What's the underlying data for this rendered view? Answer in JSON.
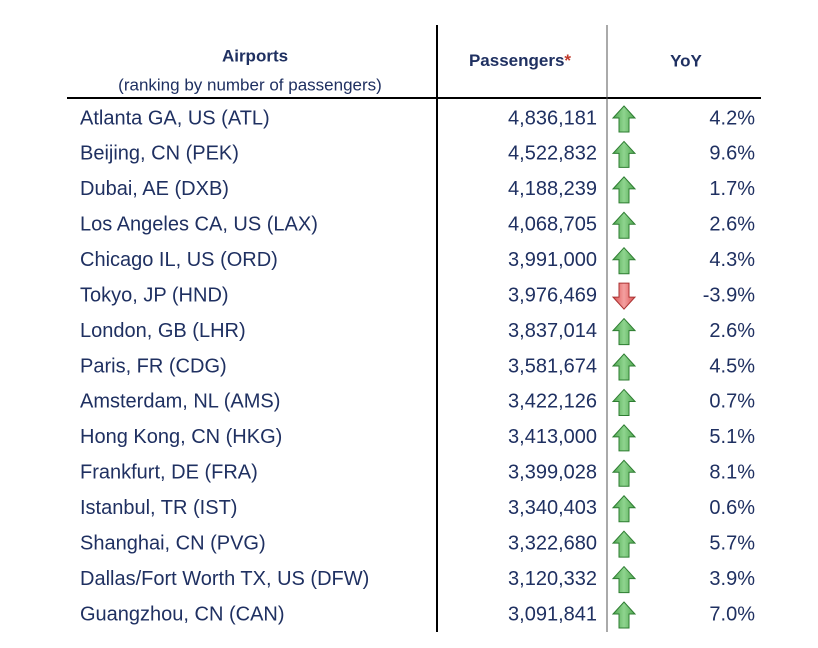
{
  "header": {
    "airports": "Airports",
    "airports_note": "(ranking by number of passengers)",
    "passengers": "Passengers",
    "passengers_mark": "*",
    "yoy": "YoY"
  },
  "table": {
    "rows": [
      [
        "Atlanta GA, US (ATL)",
        "4,836,181",
        "4.2%"
      ],
      [
        "Beijing, CN (PEK)",
        "4,522,832",
        "9.6%"
      ],
      [
        "Dubai, AE (DXB)",
        "4,188,239",
        "1.7%"
      ],
      [
        "Los Angeles CA, US (LAX)",
        "4,068,705",
        "2.6%"
      ],
      [
        "Chicago IL, US (ORD)",
        "3,991,000",
        "4.3%"
      ],
      [
        "Tokyo, JP (HND)",
        "3,976,469",
        "-3.9%"
      ],
      [
        "London, GB (LHR)",
        "3,837,014",
        "2.6%"
      ],
      [
        "Paris, FR (CDG)",
        "3,581,674",
        "4.5%"
      ],
      [
        "Amsterdam, NL (AMS)",
        "3,422,126",
        "0.7%"
      ],
      [
        "Hong Kong, CN (HKG)",
        "3,413,000",
        "5.1%"
      ],
      [
        "Frankfurt, DE (FRA)",
        "3,399,028",
        "8.1%"
      ],
      [
        "Istanbul, TR (IST)",
        "3,340,403",
        "0.6%"
      ],
      [
        "Shanghai, CN (PVG)",
        "3,322,680",
        "5.7%"
      ],
      [
        "Dallas/Fort Worth TX, US (DFW)",
        "3,120,332",
        "3.9%"
      ],
      [
        "Guangzhou, CN (CAN)",
        "3,091,841",
        "7.0%"
      ]
    ]
  }
}
